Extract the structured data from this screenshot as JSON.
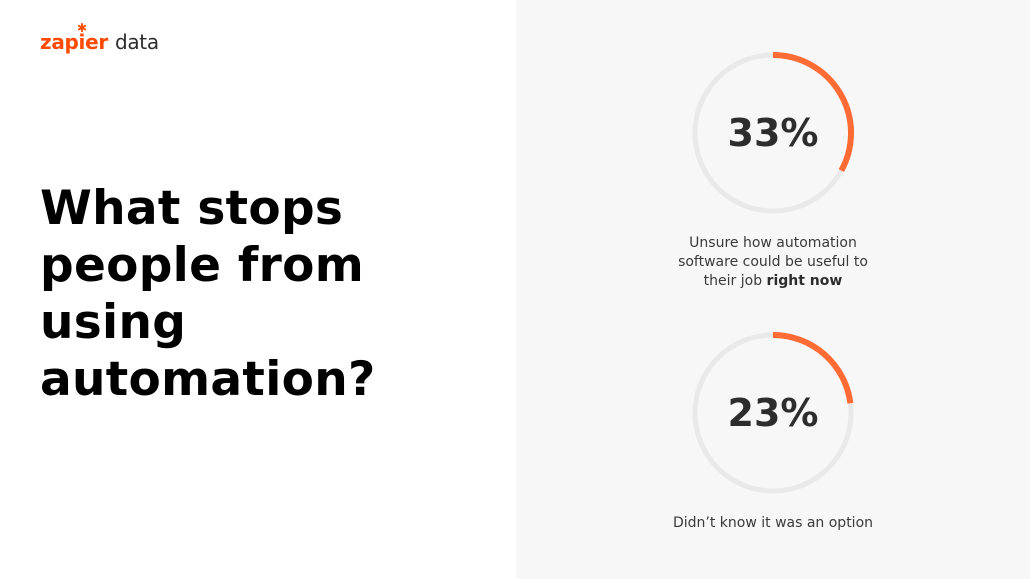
{
  "logo": {
    "brand": "zapier",
    "sub": "data"
  },
  "headline": "What stops people from using automation?",
  "colors": {
    "accent": "#ff6b35",
    "track": "#e9e9e9",
    "text": "#2d2d2d"
  },
  "chart_data": [
    {
      "type": "pie",
      "variant": "donut",
      "value": 33,
      "label": "33%",
      "caption_lines": [
        "Unsure how automation",
        "software could be useful to",
        "their job "
      ],
      "caption_emphasis": "right now"
    },
    {
      "type": "pie",
      "variant": "donut",
      "value": 23,
      "label": "23%",
      "caption_lines": [
        "Didn’t know it was an option"
      ],
      "caption_emphasis": ""
    }
  ]
}
